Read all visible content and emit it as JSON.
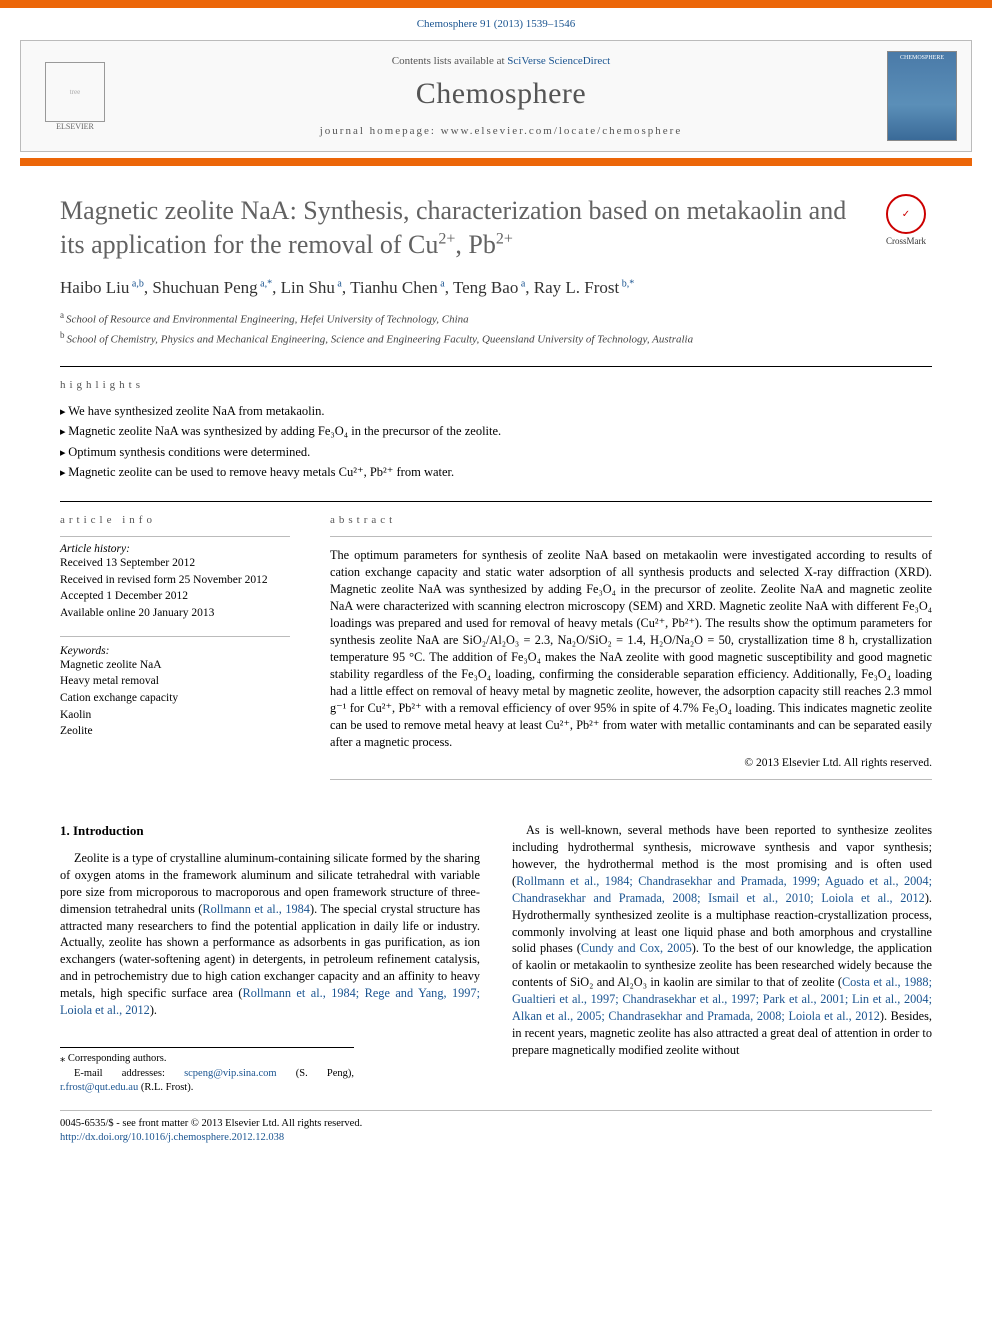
{
  "header": {
    "citation": "Chemosphere 91 (2013) 1539–1546",
    "contents_prefix": "Contents lists available at ",
    "contents_link": "SciVerse ScienceDirect",
    "journal": "Chemosphere",
    "homepage_prefix": "journal homepage: ",
    "homepage": "www.elsevier.com/locate/chemosphere",
    "publisher": "ELSEVIER",
    "cover_label": "CHEMOSPHERE"
  },
  "colors": {
    "accent": "#ec6608",
    "link": "#1a5490",
    "title_gray": "#626262"
  },
  "crossmark": {
    "label": "CrossMark"
  },
  "title": {
    "line1": "Magnetic zeolite NaA: Synthesis, characterization based on metakaolin and its application for the removal of Cu",
    "sup1": "2+",
    "mid": ", Pb",
    "sup2": "2+"
  },
  "authors_html": "Haibo Liu|a,b|, Shuchuan Peng|a,*|, Lin Shu|a|, Tianhu Chen|a|, Teng Bao|a|, Ray L. Frost|b,*|",
  "affiliations": [
    {
      "marker": "a",
      "text": "School of Resource and Environmental Engineering, Hefei University of Technology, China"
    },
    {
      "marker": "b",
      "text": "School of Chemistry, Physics and Mechanical Engineering, Science and Engineering Faculty, Queensland University of Technology, Australia"
    }
  ],
  "labels": {
    "highlights": "HIGHLIGHTS",
    "article_info": "ARTICLE INFO",
    "abstract": "ABSTRACT"
  },
  "highlights": [
    "We have synthesized zeolite NaA from metakaolin.",
    "Magnetic zeolite NaA was synthesized by adding Fe₃O₄ in the precursor of the zeolite.",
    "Optimum synthesis conditions were determined.",
    "Magnetic zeolite can be used to remove heavy metals Cu²⁺, Pb²⁺ from water."
  ],
  "history": {
    "heading": "Article history:",
    "received": "Received 13 September 2012",
    "revised": "Received in revised form 25 November 2012",
    "accepted": "Accepted 1 December 2012",
    "online": "Available online 20 January 2013"
  },
  "keywords": {
    "heading": "Keywords:",
    "items": [
      "Magnetic zeolite NaA",
      "Heavy metal removal",
      "Cation exchange capacity",
      "Kaolin",
      "Zeolite"
    ]
  },
  "abstract": "The optimum parameters for synthesis of zeolite NaA based on metakaolin were investigated according to results of cation exchange capacity and static water adsorption of all synthesis products and selected X-ray diffraction (XRD). Magnetic zeolite NaA was synthesized by adding Fe₃O₄ in the precursor of zeolite. Zeolite NaA and magnetic zeolite NaA were characterized with scanning electron microscopy (SEM) and XRD. Magnetic zeolite NaA with different Fe₃O₄ loadings was prepared and used for removal of heavy metals (Cu²⁺, Pb²⁺). The results show the optimum parameters for synthesis zeolite NaA are SiO₂/Al₂O₃ = 2.3, Na₂O/SiO₂ = 1.4, H₂O/Na₂O = 50, crystallization time 8 h, crystallization temperature 95 °C. The addition of Fe₃O₄ makes the NaA zeolite with good magnetic susceptibility and good magnetic stability regardless of the Fe₃O₄ loading, confirming the considerable separation efficiency. Additionally, Fe₃O₄ loading had a little effect on removal of heavy metal by magnetic zeolite, however, the adsorption capacity still reaches 2.3 mmol g⁻¹ for Cu²⁺, Pb²⁺ with a removal efficiency of over 95% in spite of 4.7% Fe₃O₄ loading. This indicates magnetic zeolite can be used to remove metal heavy at least Cu²⁺, Pb²⁺ from water with metallic contaminants and can be separated easily after a magnetic process.",
  "copyright": "© 2013 Elsevier Ltd. All rights reserved.",
  "intro": {
    "heading": "1. Introduction",
    "p1_a": "Zeolite is a type of crystalline aluminum-containing silicate formed by the sharing of oxygen atoms in the framework aluminum and silicate tetrahedral with variable pore size from microporous to macroporous and open framework structure of three-dimension tetrahedral units (",
    "p1_ref1": "Rollmann et al., 1984",
    "p1_b": "). The special crystal structure has attracted many researchers to find the potential application in daily life or industry. Actually, zeolite has shown a performance as adsorbents in gas purification, as ion exchangers (water-softening agent) in detergents, in petroleum refinement catalysis, and in petrochemistry due to high cation exchanger capacity and an affinity to heavy metals, high specific surface area (",
    "p1_ref2": "Rollmann et al., 1984; Rege and Yang, 1997; Loiola et al., 2012",
    "p1_c": ").",
    "p2_a": "As is well-known, several methods have been reported to synthesize zeolites including hydrothermal synthesis, microwave synthesis and vapor synthesis; however, the hydrothermal method is the most promising and is often used (",
    "p2_ref1": "Rollmann et al., 1984; Chandrasekhar and Pramada, 1999; Aguado et al., 2004; Chandrasekhar and Pramada, 2008; Ismail et al., 2010; Loiola et al., 2012",
    "p2_b": "). Hydrothermally synthesized zeolite is a multiphase reaction-crystallization process, commonly involving at least one liquid phase and both amorphous and crystalline solid phases (",
    "p2_ref2": "Cundy and Cox, 2005",
    "p2_c": "). To the best of our knowledge, the application of kaolin or metakaolin to synthesize zeolite has been researched widely because the contents of SiO₂ and Al₂O₃ in kaolin are similar to that of zeolite (",
    "p2_ref3": "Costa et al., 1988; Gualtieri et al., 1997; Chandrasekhar et al., 1997; Park et al., 2001; Lin et al., 2004; Alkan et al., 2005; Chandrasekhar and Pramada, 2008; Loiola et al., 2012",
    "p2_d": "). Besides, in recent years, magnetic zeolite has also attracted a great deal of attention in order to prepare magnetically modified zeolite without"
  },
  "corr": {
    "label": "⁎ Corresponding authors.",
    "email_label": "E-mail addresses: ",
    "email1": "scpeng@vip.sina.com",
    "name1": " (S. Peng), ",
    "email2": "r.frost@qut.edu.au",
    "name2": " (R.L. Frost)."
  },
  "footer": {
    "line1": "0045-6535/$ - see front matter © 2013 Elsevier Ltd. All rights reserved.",
    "doi": "http://dx.doi.org/10.1016/j.chemosphere.2012.12.038"
  }
}
